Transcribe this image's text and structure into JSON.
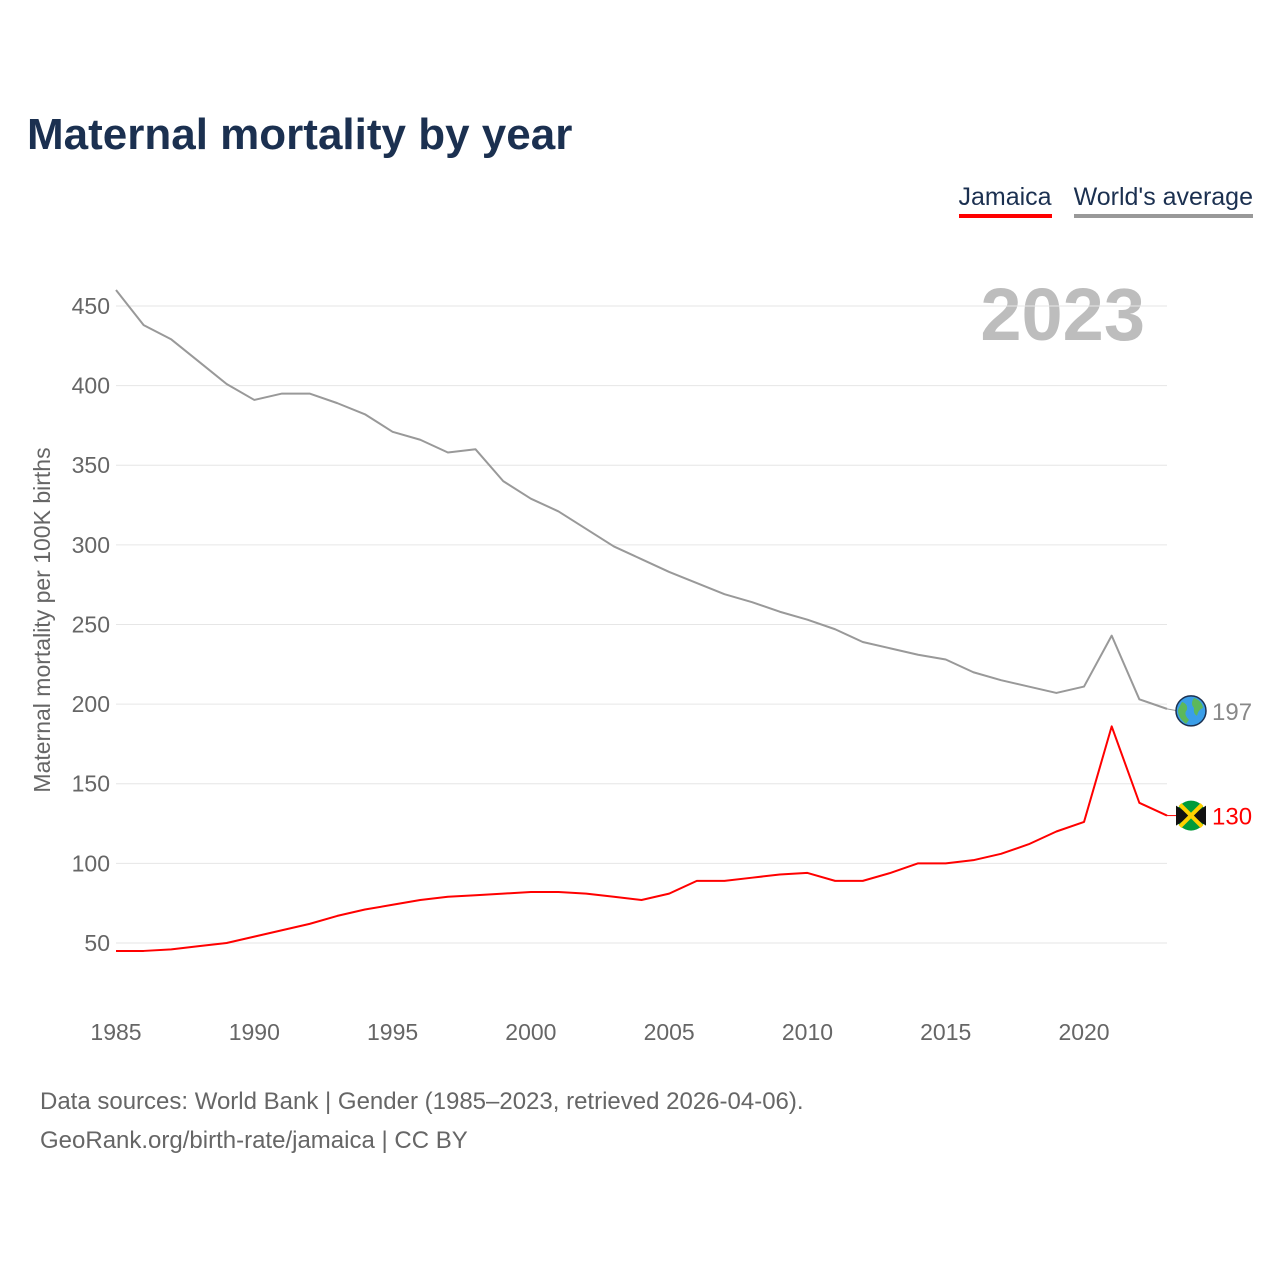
{
  "chart_data": {
    "type": "line",
    "title": "Maternal mortality by year",
    "xlabel": "",
    "ylabel": "Maternal mortality per 100K births",
    "xlim": [
      1985,
      2023
    ],
    "ylim": [
      0,
      460
    ],
    "yticks": [
      50,
      100,
      150,
      200,
      250,
      300,
      350,
      400,
      450
    ],
    "xticks": [
      1985,
      1990,
      1995,
      2000,
      2005,
      2010,
      2015,
      2020
    ],
    "grid": true,
    "legend_position": "top-right",
    "year_label": "2023",
    "x": [
      1985,
      1986,
      1987,
      1988,
      1989,
      1990,
      1991,
      1992,
      1993,
      1994,
      1995,
      1996,
      1997,
      1998,
      1999,
      2000,
      2001,
      2002,
      2003,
      2004,
      2005,
      2006,
      2007,
      2008,
      2009,
      2010,
      2011,
      2012,
      2013,
      2014,
      2015,
      2016,
      2017,
      2018,
      2019,
      2020,
      2021,
      2022,
      2023
    ],
    "series": [
      {
        "name": "Jamaica",
        "color": "#ff0000",
        "end_label": "130",
        "values": [
          45,
          45,
          46,
          48,
          50,
          54,
          58,
          62,
          67,
          71,
          74,
          77,
          79,
          80,
          81,
          82,
          82,
          81,
          79,
          77,
          81,
          89,
          89,
          91,
          93,
          94,
          89,
          89,
          94,
          100,
          100,
          102,
          106,
          112,
          120,
          126,
          186,
          138,
          130
        ]
      },
      {
        "name": "World's average",
        "color": "#999999",
        "end_label": "197",
        "values": [
          460,
          438,
          429,
          415,
          401,
          391,
          395,
          395,
          389,
          382,
          371,
          366,
          358,
          360,
          340,
          329,
          321,
          310,
          299,
          291,
          283,
          276,
          269,
          264,
          258,
          253,
          247,
          239,
          235,
          231,
          228,
          220,
          215,
          211,
          207,
          211,
          243,
          203,
          197
        ]
      }
    ]
  },
  "footer": {
    "line1": "Data sources: World Bank | Gender (1985–2023, retrieved 2026-04-06).",
    "line2": "GeoRank.org/birth-rate/jamaica | CC BY"
  }
}
